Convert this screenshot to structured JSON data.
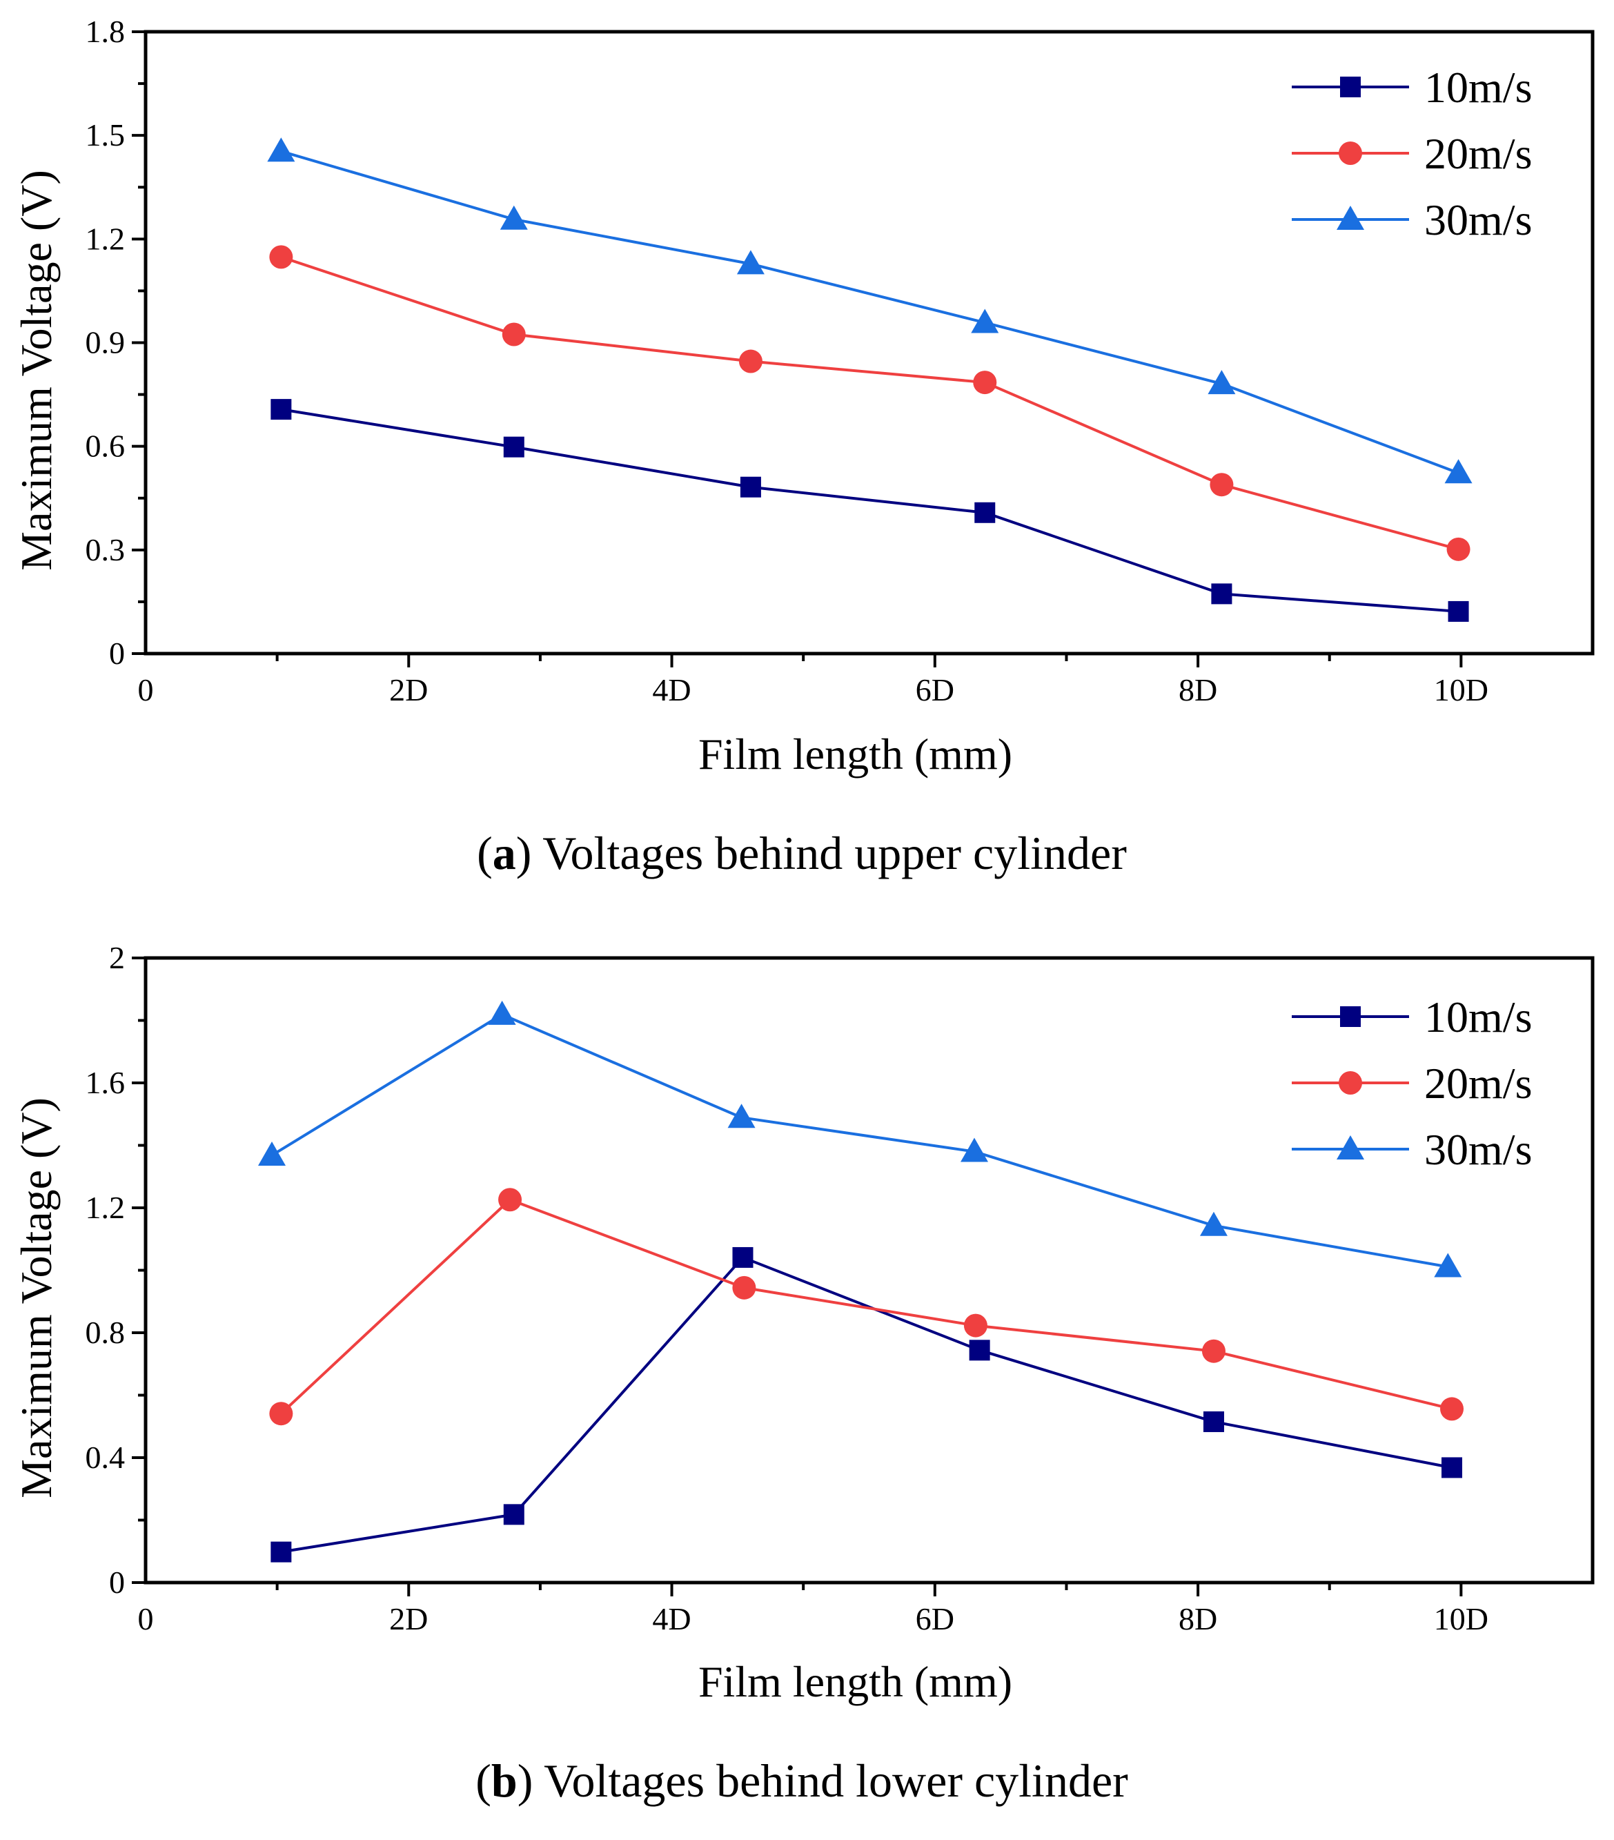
{
  "chart_data": [
    {
      "type": "line",
      "title": "Voltages behind upper cylinder",
      "caption_label": "a",
      "xlabel": "Film length (mm)",
      "ylabel": "Maximum Voltage (V)",
      "xlim": [
        0,
        11
      ],
      "ylim": [
        0,
        1.8
      ],
      "xticks": [
        0,
        2,
        4,
        6,
        8,
        10
      ],
      "xtick_labels": [
        "0",
        "2D",
        "4D",
        "6D",
        "8D",
        "10D"
      ],
      "yticks": [
        0,
        0.3,
        0.6,
        0.9,
        1.2,
        1.5,
        1.8
      ],
      "ytick_labels": [
        "0",
        "0.3",
        "0.6",
        "0.9",
        "1.2",
        "1.5",
        "1.8"
      ],
      "legend_position": "top-right",
      "series": [
        {
          "name": "10m/s",
          "color": "#000080",
          "marker": "square",
          "x": [
            1.03,
            2.8,
            4.6,
            6.38,
            8.18,
            9.98
          ],
          "values": [
            0.707,
            0.598,
            0.482,
            0.408,
            0.173,
            0.122
          ]
        },
        {
          "name": "20m/s",
          "color": "#ef4040",
          "marker": "circle",
          "x": [
            1.03,
            2.8,
            4.6,
            6.38,
            8.18,
            9.98
          ],
          "values": [
            1.148,
            0.924,
            0.846,
            0.785,
            0.489,
            0.302
          ]
        },
        {
          "name": "30m/s",
          "color": "#1a6fe0",
          "marker": "triangle",
          "x": [
            1.03,
            2.8,
            4.6,
            6.38,
            8.18,
            9.98
          ],
          "values": [
            1.454,
            1.257,
            1.128,
            0.958,
            0.781,
            0.523
          ]
        }
      ]
    },
    {
      "type": "line",
      "title": "Voltages behind lower cylinder",
      "caption_label": "b",
      "xlabel": "Film length (mm)",
      "ylabel": "Maximum Voltage (V)",
      "xlim": [
        0,
        11
      ],
      "ylim": [
        0,
        2
      ],
      "xticks": [
        0,
        2,
        4,
        6,
        8,
        10
      ],
      "xtick_labels": [
        "0",
        "2D",
        "4D",
        "6D",
        "8D",
        "10D"
      ],
      "yticks": [
        0,
        0.4,
        0.8,
        1.2,
        1.6,
        2
      ],
      "ytick_labels": [
        "0",
        "0.4",
        "0.8",
        "1.2",
        "1.6",
        "2"
      ],
      "legend_position": "top-right",
      "series": [
        {
          "name": "10m/s",
          "color": "#000080",
          "marker": "square",
          "x": [
            1.03,
            2.8,
            4.54,
            6.34,
            8.12,
            9.93
          ],
          "values": [
            0.098,
            0.218,
            1.041,
            0.744,
            0.515,
            0.368
          ]
        },
        {
          "name": "20m/s",
          "color": "#ef4040",
          "marker": "circle",
          "x": [
            1.03,
            2.77,
            4.55,
            6.31,
            8.12,
            9.93
          ],
          "values": [
            0.541,
            1.226,
            0.944,
            0.823,
            0.741,
            0.556
          ]
        },
        {
          "name": "30m/s",
          "color": "#1a6fe0",
          "marker": "triangle",
          "x": [
            0.96,
            2.71,
            4.53,
            6.3,
            8.12,
            9.9
          ],
          "values": [
            1.368,
            1.819,
            1.489,
            1.38,
            1.143,
            1.011
          ]
        }
      ]
    }
  ]
}
